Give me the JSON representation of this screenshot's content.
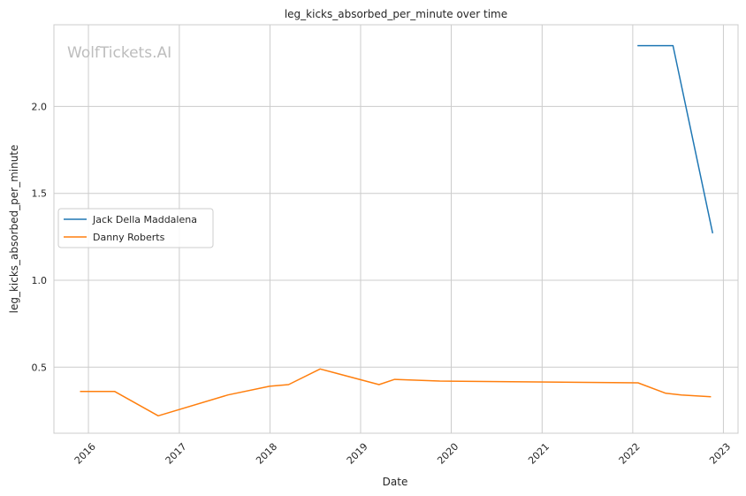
{
  "watermark": "WolfTickets.AI",
  "chart_data": {
    "type": "line",
    "title": "leg_kicks_absorbed_per_minute over time",
    "xlabel": "Date",
    "ylabel": "leg_kicks_absorbed_per_minute",
    "xlim": [
      "2015-08-15",
      "2023-03-01"
    ],
    "ylim": [
      0.12,
      2.47
    ],
    "x_ticks": [
      "2016",
      "2017",
      "2018",
      "2019",
      "2020",
      "2021",
      "2022",
      "2023"
    ],
    "y_ticks": [
      0.5,
      1.0,
      1.5,
      2.0
    ],
    "y_tick_labels": [
      "0.5",
      "1.0",
      "1.5",
      "2.0"
    ],
    "grid": true,
    "legend_position": "center-left",
    "series": [
      {
        "name": "Jack Della Maddalena",
        "color": "#1f77b4",
        "points": [
          {
            "x": "2022-01-20",
            "y": 2.35
          },
          {
            "x": "2022-06-12",
            "y": 2.35
          },
          {
            "x": "2022-11-19",
            "y": 1.27
          }
        ]
      },
      {
        "name": "Danny Roberts",
        "color": "#ff7f0e",
        "points": [
          {
            "x": "2015-11-28",
            "y": 0.36
          },
          {
            "x": "2016-04-16",
            "y": 0.36
          },
          {
            "x": "2016-10-08",
            "y": 0.22
          },
          {
            "x": "2017-07-16",
            "y": 0.34
          },
          {
            "x": "2017-12-30",
            "y": 0.39
          },
          {
            "x": "2018-03-17",
            "y": 0.4
          },
          {
            "x": "2018-07-22",
            "y": 0.49
          },
          {
            "x": "2019-03-16",
            "y": 0.4
          },
          {
            "x": "2019-05-18",
            "y": 0.43
          },
          {
            "x": "2019-11-16",
            "y": 0.42
          },
          {
            "x": "2022-01-22",
            "y": 0.41
          },
          {
            "x": "2022-05-14",
            "y": 0.35
          },
          {
            "x": "2022-07-16",
            "y": 0.34
          },
          {
            "x": "2022-11-12",
            "y": 0.33
          }
        ]
      }
    ]
  }
}
